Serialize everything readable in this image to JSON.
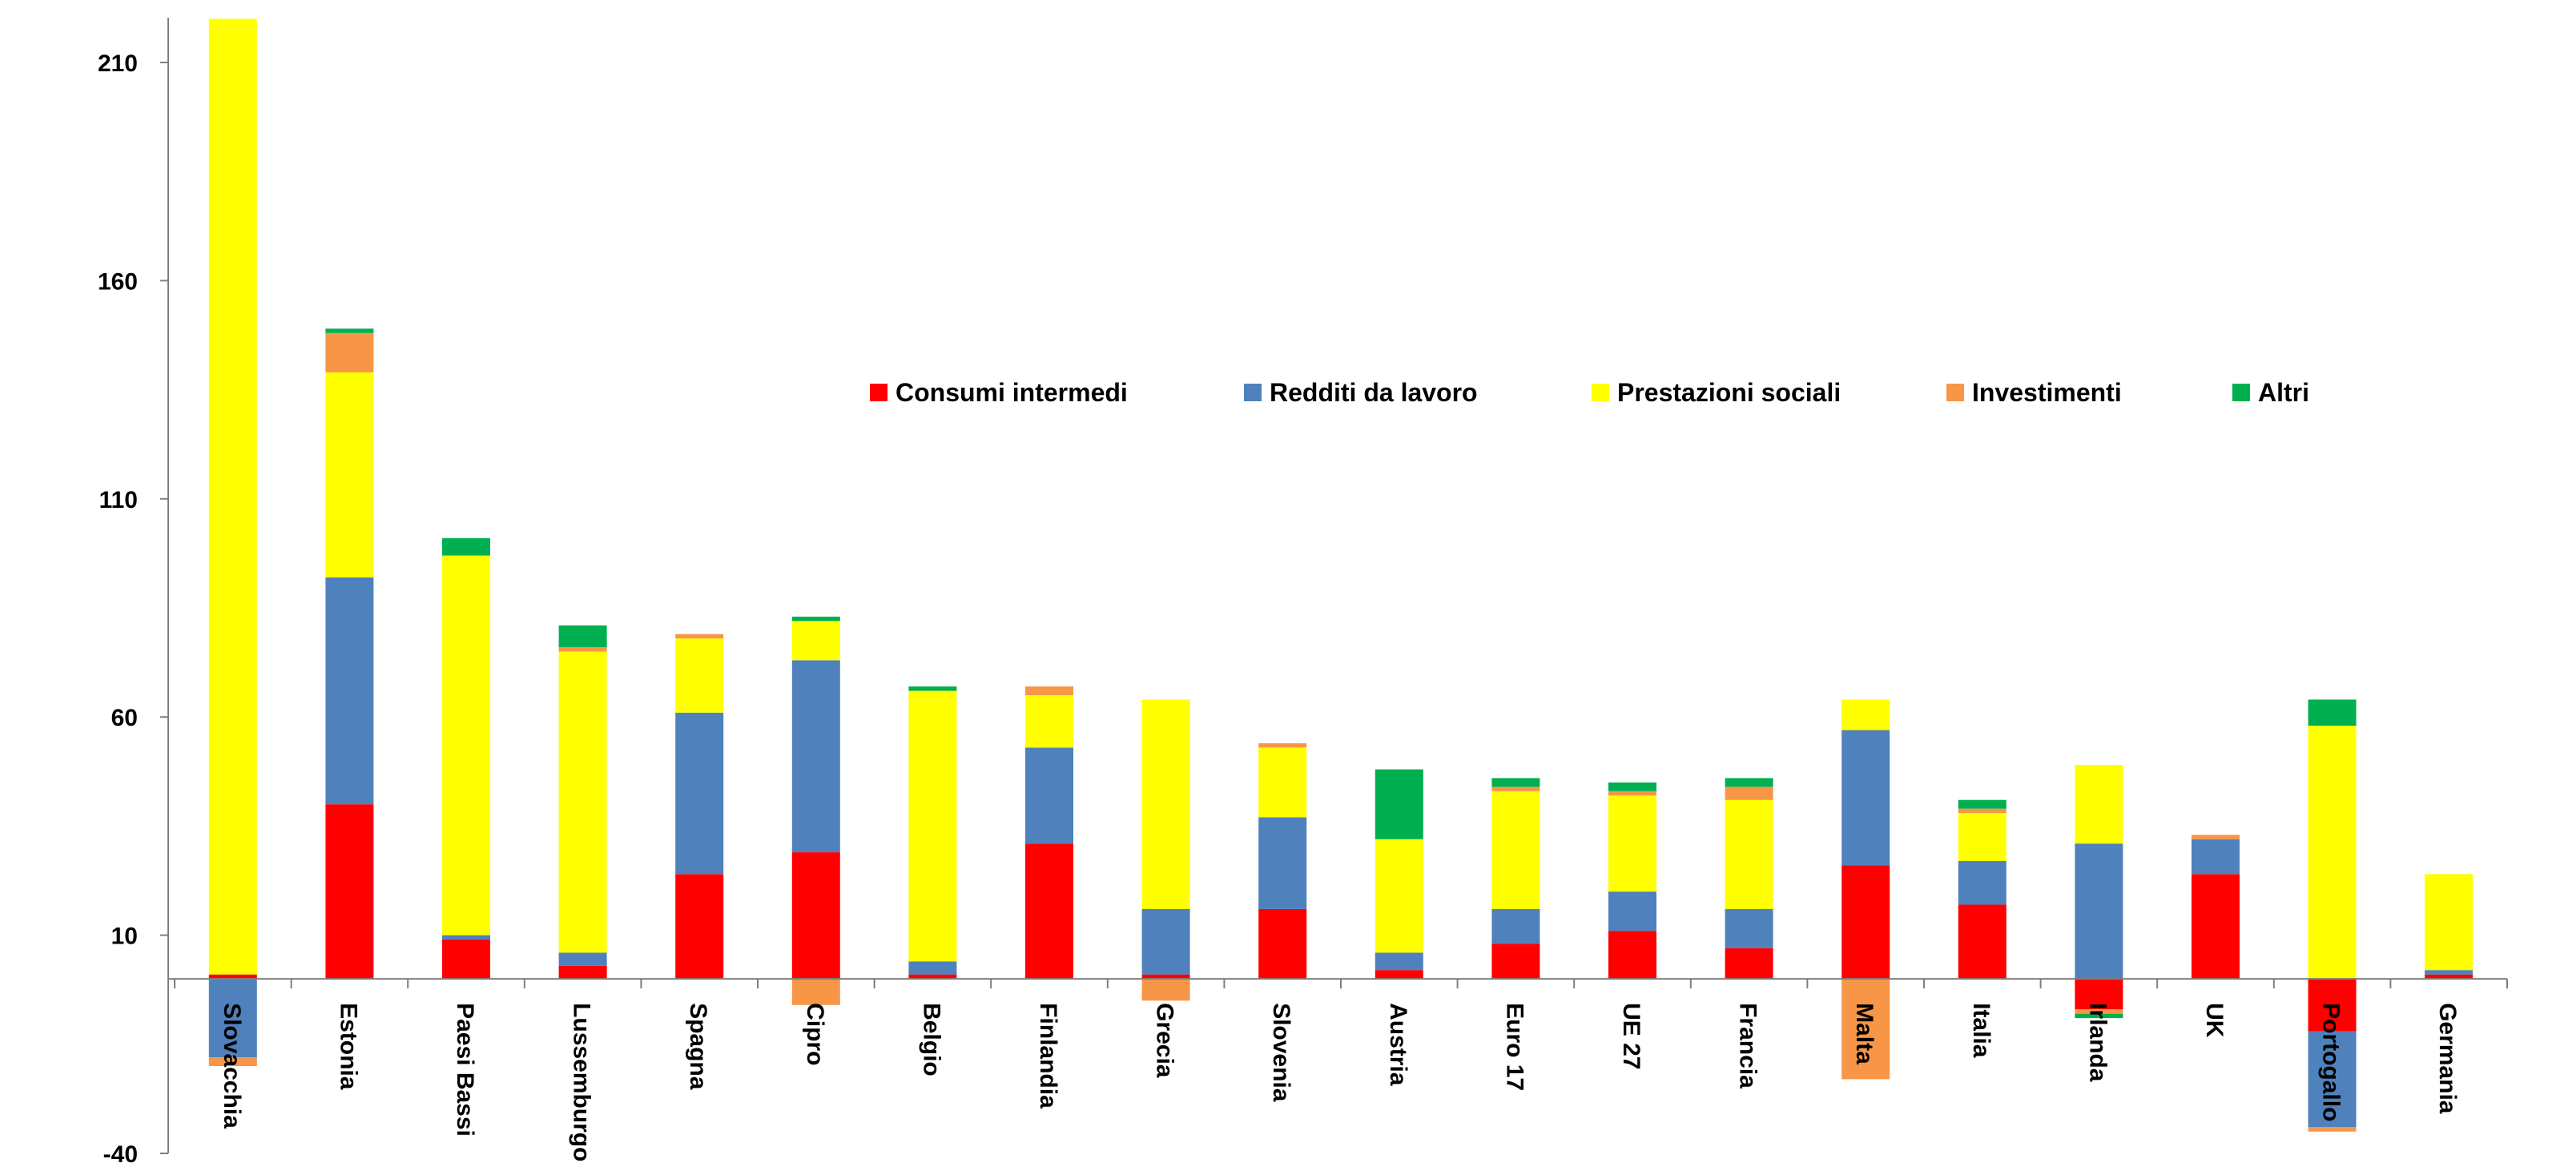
{
  "chart_data": {
    "type": "bar",
    "stacked": true,
    "title": "",
    "xlabel": "",
    "ylabel": "",
    "ylim": [
      -40,
      220
    ],
    "yticks": [
      -40,
      10,
      60,
      110,
      160,
      210
    ],
    "grid": false,
    "legend_position": "top-center",
    "categories": [
      "Slovacchia",
      "Estonia",
      "Paesi Bassi",
      "Lussemburgo",
      "Spagna",
      "Cipro",
      "Belgio",
      "Finlandia",
      "Grecia",
      "Slovenia",
      "Austria",
      "Euro 17",
      "UE 27",
      "Francia",
      "Malta",
      "Italia",
      "Irlanda",
      "UK",
      "Portogallo",
      "Germania"
    ],
    "series": [
      {
        "name": "Consumi intermedi",
        "color": "#ff0000",
        "values": [
          1,
          40,
          9,
          3,
          24,
          29,
          1,
          31,
          1,
          16,
          2,
          8,
          11,
          7,
          26,
          17,
          -7,
          24,
          -12,
          1
        ]
      },
      {
        "name": "Redditi da lavoro",
        "color": "#4f81bd",
        "values": [
          -18,
          52,
          1,
          3,
          37,
          44,
          3,
          22,
          15,
          21,
          4,
          8,
          9,
          9,
          31,
          10,
          31,
          8,
          -22,
          1
        ]
      },
      {
        "name": "Prestazioni sociali",
        "color": "#ffff00",
        "values": [
          219,
          47,
          87,
          69,
          17,
          9,
          62,
          12,
          48,
          16,
          26,
          27,
          22,
          25,
          7,
          11,
          18,
          0,
          58,
          22
        ]
      },
      {
        "name": "Investimenti",
        "color": "#f79646",
        "values": [
          -2,
          9,
          0,
          1,
          1,
          -6,
          0,
          2,
          -5,
          1,
          0,
          1,
          1,
          3,
          -23,
          1,
          -1,
          1,
          -1,
          0
        ]
      },
      {
        "name": "Altri",
        "color": "#00b050",
        "values": [
          0,
          1,
          4,
          5,
          0,
          1,
          1,
          0,
          0,
          0,
          16,
          2,
          2,
          2,
          0,
          2,
          -1,
          0,
          6,
          0
        ]
      }
    ]
  }
}
